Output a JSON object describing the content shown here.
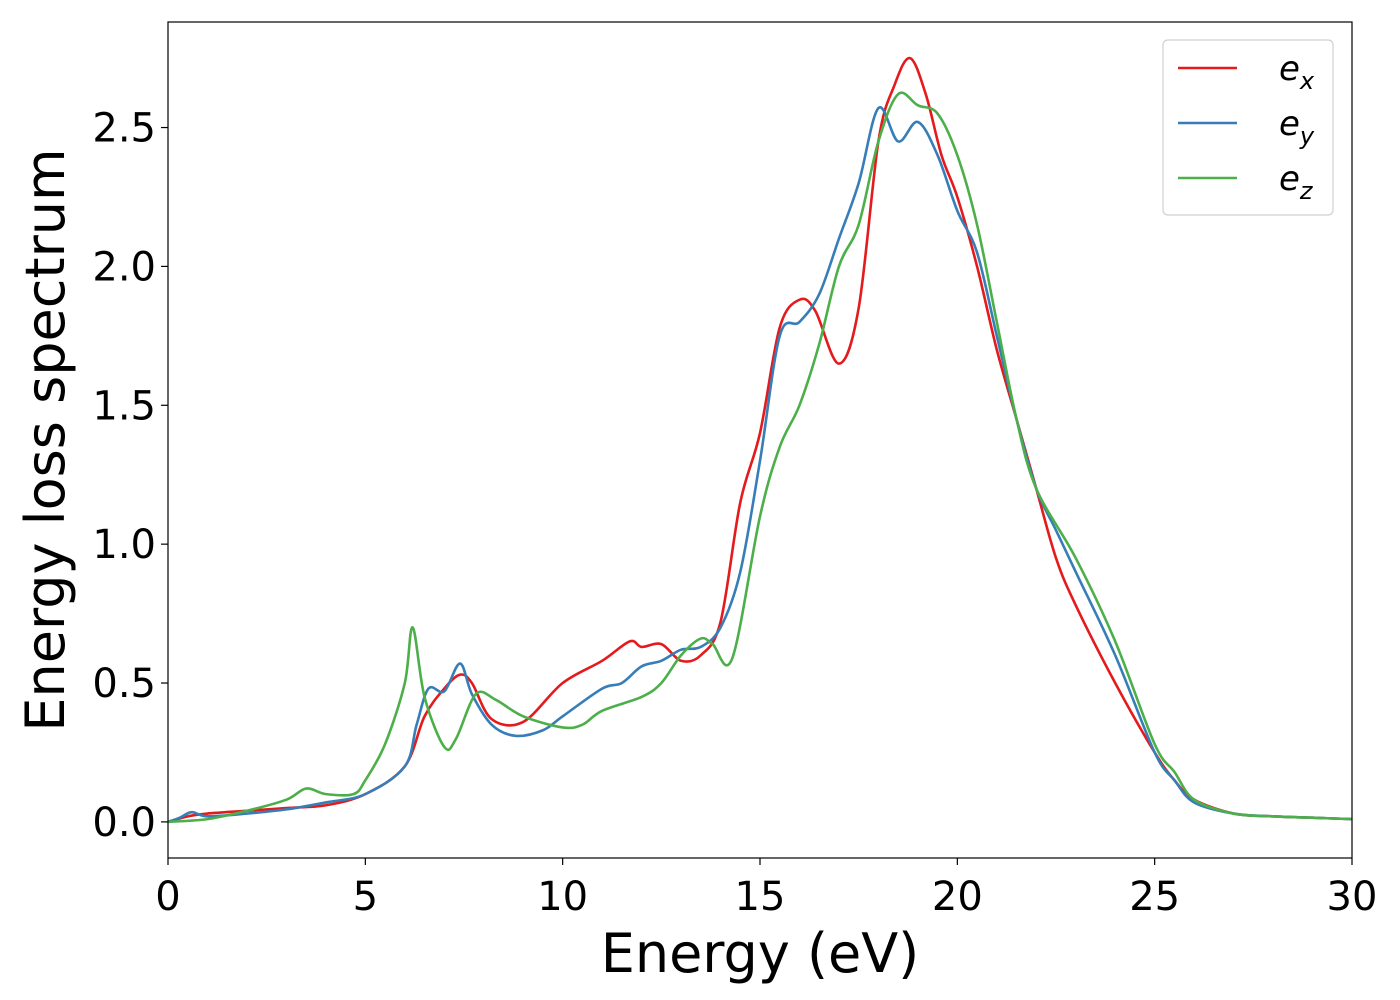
{
  "chart_data": {
    "type": "line",
    "title": "",
    "xlabel": "Energy (eV)",
    "ylabel": "Energy loss spectrum",
    "xlim": [
      0,
      30
    ],
    "ylim": [
      -0.13,
      2.88
    ],
    "xticks": [
      0,
      5,
      10,
      15,
      20,
      25,
      30
    ],
    "xtick_labels": [
      "0",
      "5",
      "10",
      "15",
      "20",
      "25",
      "30"
    ],
    "yticks": [
      0.0,
      0.5,
      1.0,
      1.5,
      2.0,
      2.5
    ],
    "ytick_labels": [
      "0.0",
      "0.5",
      "1.0",
      "1.5",
      "2.0",
      "2.5"
    ],
    "grid": false,
    "legend_position": "top-right",
    "series": [
      {
        "name": "e_x",
        "label_base": "e",
        "label_sub": "x",
        "color": "#e41a1c",
        "x": [
          0,
          0.5,
          1,
          2,
          3,
          4,
          5,
          6,
          6.5,
          7,
          7.4,
          7.7,
          8.2,
          9,
          10,
          11,
          11.7,
          12,
          12.5,
          13,
          13.5,
          14,
          14.5,
          15,
          15.5,
          16,
          16.4,
          17,
          17.5,
          18,
          18.4,
          18.8,
          19.2,
          19.6,
          20,
          20.5,
          21,
          21.5,
          22,
          22.5,
          23,
          24,
          25,
          25.5,
          26,
          27,
          28,
          29,
          30
        ],
        "values": [
          0.0,
          0.02,
          0.03,
          0.04,
          0.05,
          0.06,
          0.1,
          0.2,
          0.38,
          0.48,
          0.53,
          0.5,
          0.37,
          0.36,
          0.5,
          0.58,
          0.65,
          0.63,
          0.64,
          0.58,
          0.6,
          0.72,
          1.15,
          1.4,
          1.78,
          1.88,
          1.84,
          1.65,
          1.85,
          2.45,
          2.65,
          2.75,
          2.62,
          2.4,
          2.25,
          2.0,
          1.7,
          1.45,
          1.2,
          0.95,
          0.78,
          0.5,
          0.25,
          0.15,
          0.08,
          0.03,
          0.02,
          0.015,
          0.01
        ]
      },
      {
        "name": "e_y",
        "label_base": "e",
        "label_sub": "y",
        "color": "#377eb8",
        "x": [
          0,
          0.3,
          0.6,
          1,
          2,
          3,
          4,
          5,
          6,
          6.3,
          6.6,
          7,
          7.4,
          7.7,
          8.2,
          8.8,
          9.5,
          10,
          11,
          11.5,
          12,
          12.5,
          13,
          13.5,
          14,
          14.5,
          15,
          15.5,
          16,
          16.5,
          17,
          17.5,
          18,
          18.5,
          19,
          19.5,
          20,
          20.5,
          21,
          21.5,
          22,
          22.5,
          23,
          24,
          25,
          25.5,
          26,
          27,
          28,
          29,
          30
        ],
        "values": [
          0.0,
          0.015,
          0.035,
          0.02,
          0.03,
          0.045,
          0.07,
          0.1,
          0.2,
          0.35,
          0.48,
          0.47,
          0.57,
          0.46,
          0.35,
          0.31,
          0.33,
          0.38,
          0.48,
          0.5,
          0.56,
          0.58,
          0.62,
          0.63,
          0.7,
          0.9,
          1.3,
          1.75,
          1.8,
          1.9,
          2.1,
          2.3,
          2.57,
          2.45,
          2.52,
          2.4,
          2.2,
          2.05,
          1.75,
          1.45,
          1.2,
          1.05,
          0.9,
          0.6,
          0.25,
          0.15,
          0.07,
          0.03,
          0.02,
          0.015,
          0.01
        ]
      },
      {
        "name": "e_z",
        "label_base": "e",
        "label_sub": "z",
        "color": "#4daf4a",
        "x": [
          0,
          1,
          2,
          3,
          3.5,
          4,
          4.7,
          5,
          5.5,
          6,
          6.2,
          6.5,
          7,
          7.3,
          7.8,
          8.3,
          9,
          10,
          10.5,
          11,
          12,
          12.5,
          13,
          13.5,
          13.8,
          14.3,
          15,
          15.5,
          16,
          16.5,
          17,
          17.5,
          18,
          18.5,
          19,
          19.5,
          20,
          20.5,
          21,
          21.5,
          22,
          23,
          24,
          25,
          25.5,
          26,
          27,
          28,
          29,
          30
        ],
        "values": [
          0.0,
          0.01,
          0.04,
          0.08,
          0.12,
          0.1,
          0.1,
          0.15,
          0.28,
          0.5,
          0.7,
          0.45,
          0.27,
          0.3,
          0.46,
          0.44,
          0.38,
          0.34,
          0.35,
          0.4,
          0.45,
          0.5,
          0.6,
          0.66,
          0.64,
          0.59,
          1.1,
          1.35,
          1.5,
          1.72,
          2.0,
          2.15,
          2.45,
          2.62,
          2.58,
          2.55,
          2.4,
          2.15,
          1.8,
          1.45,
          1.2,
          0.95,
          0.65,
          0.28,
          0.18,
          0.08,
          0.03,
          0.02,
          0.015,
          0.01
        ]
      }
    ]
  }
}
